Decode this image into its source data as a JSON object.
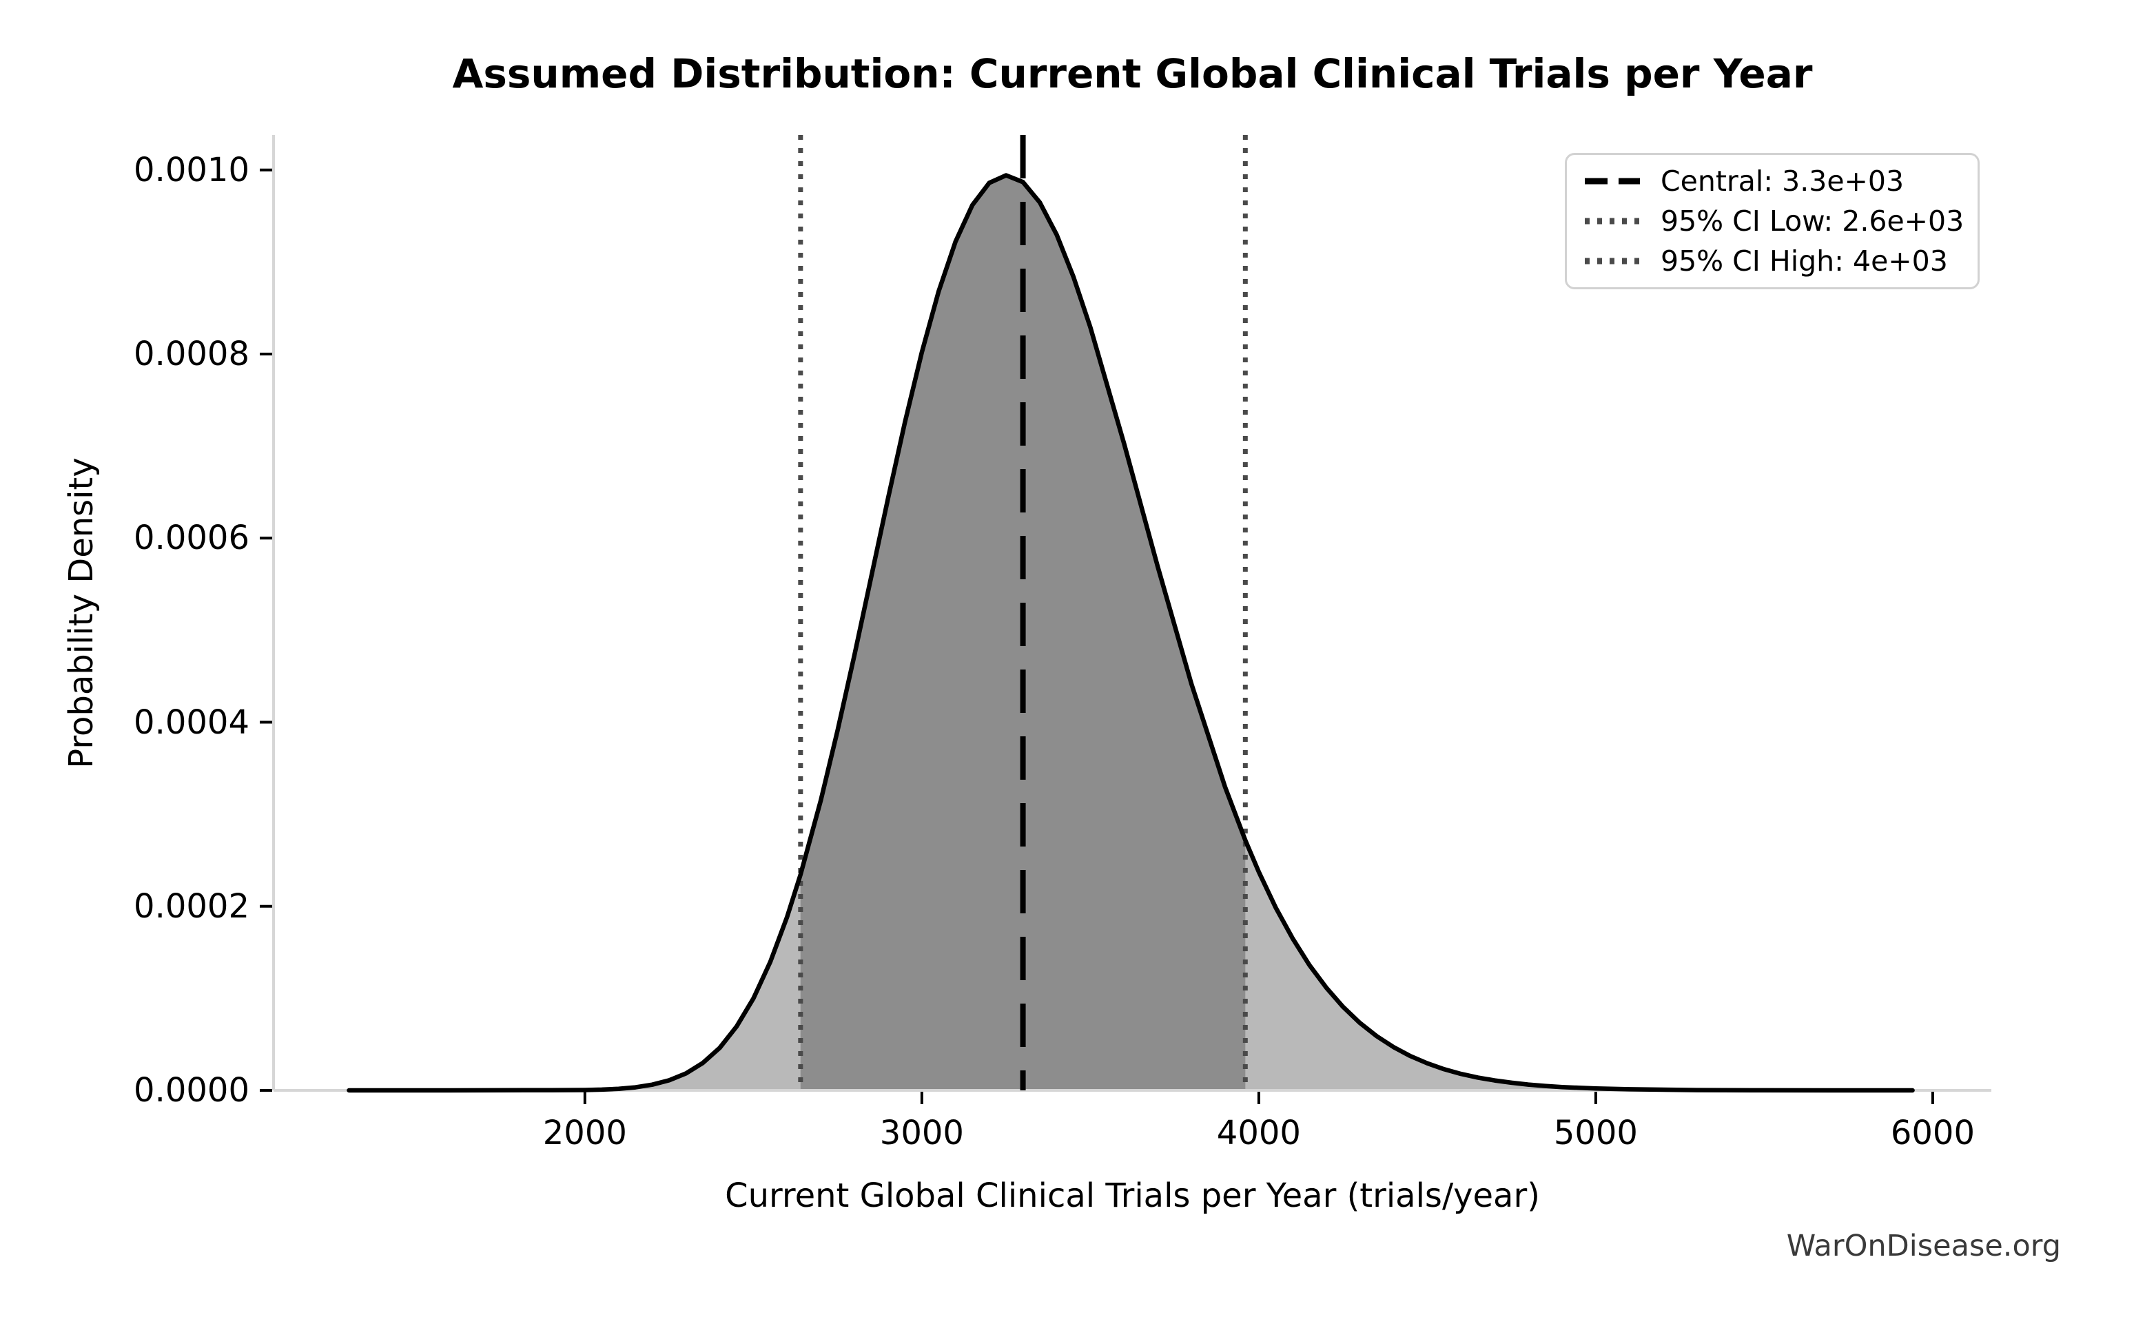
{
  "chart_data": {
    "type": "area",
    "title": "Assumed Distribution: Current Global Clinical Trials per Year",
    "xlabel": "Current Global Clinical Trials per Year (trials/year)",
    "ylabel": "Probability Density",
    "watermark": "WarOnDisease.org",
    "xlim": [
      1076,
      6174
    ],
    "ylim": [
      0,
      0.001038
    ],
    "grid": false,
    "legend_position": "upper right",
    "x_ticks": {
      "values": [
        2000,
        3000,
        4000,
        5000,
        6000
      ],
      "labels": [
        "2000",
        "3000",
        "4000",
        "5000",
        "6000"
      ]
    },
    "y_ticks": {
      "values": [
        0,
        0.0002,
        0.0004,
        0.0006,
        0.0008,
        0.001
      ],
      "labels": [
        "0.0000",
        "0.0002",
        "0.0004",
        "0.0006",
        "0.0008",
        "0.0010"
      ]
    },
    "markers": {
      "central": {
        "value": 3300,
        "label": "Central: 3.3e+03",
        "line_style": "dashed",
        "color": "#000000"
      },
      "ci_low": {
        "value": 2640,
        "label": "95% CI Low: 2.6e+03",
        "line_style": "dotted",
        "color": "#4a4a4a"
      },
      "ci_high": {
        "value": 3960,
        "label": "95% CI High: 4e+03",
        "line_style": "dotted",
        "color": "#4a4a4a"
      }
    },
    "ci_region": [
      2640,
      3960
    ],
    "colors": {
      "curve": "#000000",
      "fill": "#b9b9b9",
      "fill_ci": "#8d8d8d",
      "spine": "#d6d6d6",
      "tick": "#000000",
      "watermark": "#3a3a3a",
      "legend_border": "#d2d2d2"
    },
    "curve_points": [
      [
        1300,
        0
      ],
      [
        1600,
        0
      ],
      [
        1900,
        2e-07
      ],
      [
        2000,
        4e-07
      ],
      [
        2050,
        8e-07
      ],
      [
        2100,
        1.7e-06
      ],
      [
        2150,
        3.3e-06
      ],
      [
        2200,
        6.2e-06
      ],
      [
        2250,
        1.09e-05
      ],
      [
        2300,
        1.84e-05
      ],
      [
        2350,
        2.98e-05
      ],
      [
        2400,
        4.62e-05
      ],
      [
        2450,
        6.93e-05
      ],
      [
        2500,
        9.98e-05
      ],
      [
        2550,
        0.0001394
      ],
      [
        2600,
        0.0001885
      ],
      [
        2640,
        0.0002345
      ],
      [
        2700,
        0.0003151
      ],
      [
        2750,
        0.0003912
      ],
      [
        2800,
        0.0004732
      ],
      [
        2850,
        0.0005584
      ],
      [
        2900,
        0.0006439
      ],
      [
        2950,
        0.0007262
      ],
      [
        3000,
        0.0008021
      ],
      [
        3050,
        0.0008683
      ],
      [
        3100,
        0.0009223
      ],
      [
        3150,
        0.0009619
      ],
      [
        3200,
        0.000986
      ],
      [
        3250,
        0.0009942
      ],
      [
        3300,
        0.0009869
      ],
      [
        3350,
        0.0009648
      ],
      [
        3400,
        0.0009298
      ],
      [
        3450,
        0.0008838
      ],
      [
        3500,
        0.0008291
      ],
      [
        3600,
        0.0007029
      ],
      [
        3700,
        0.0005691
      ],
      [
        3800,
        0.0004416
      ],
      [
        3900,
        0.0003295
      ],
      [
        3960,
        0.0002717
      ],
      [
        4000,
        0.0002373
      ],
      [
        4050,
        0.0001988
      ],
      [
        4100,
        0.0001653
      ],
      [
        4150,
        0.0001363
      ],
      [
        4200,
        0.0001117
      ],
      [
        4250,
        9.08e-05
      ],
      [
        4300,
        7.33e-05
      ],
      [
        4350,
        5.89e-05
      ],
      [
        4400,
        4.7e-05
      ],
      [
        4450,
        3.73e-05
      ],
      [
        4500,
        2.94e-05
      ],
      [
        4550,
        2.3e-05
      ],
      [
        4600,
        1.79e-05
      ],
      [
        4650,
        1.39e-05
      ],
      [
        4700,
        1.08e-05
      ],
      [
        4750,
        8.3e-06
      ],
      [
        4800,
        6.3e-06
      ],
      [
        4850,
        4.8e-06
      ],
      [
        4900,
        3.6e-06
      ],
      [
        4950,
        2.8e-06
      ],
      [
        5000,
        2.1e-06
      ],
      [
        5100,
        1.2e-06
      ],
      [
        5300,
        3e-07
      ],
      [
        5500,
        1e-07
      ],
      [
        5700,
        0
      ],
      [
        5940,
        0
      ]
    ]
  }
}
